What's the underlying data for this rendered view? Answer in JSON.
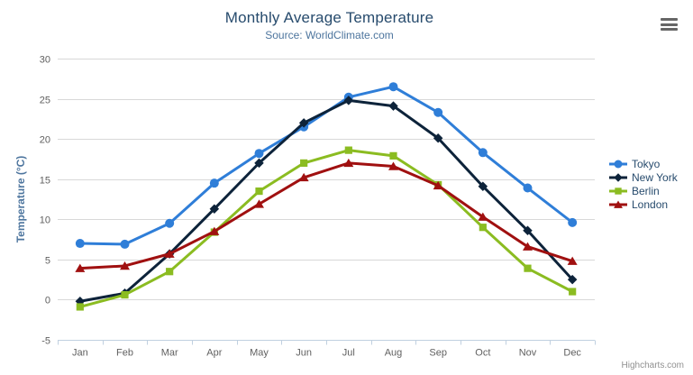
{
  "chart_data": {
    "type": "line",
    "title": "Monthly Average Temperature",
    "subtitle": "Source: WorldClimate.com",
    "categories": [
      "Jan",
      "Feb",
      "Mar",
      "Apr",
      "May",
      "Jun",
      "Jul",
      "Aug",
      "Sep",
      "Oct",
      "Nov",
      "Dec"
    ],
    "xlabel": "",
    "ylabel": "Temperature (°C)",
    "ylim": [
      -5,
      30
    ],
    "ytick_step": 5,
    "grid": true,
    "legend_position": "right",
    "series": [
      {
        "name": "Tokyo",
        "color": "#2f7ed8",
        "marker": "circle",
        "values": [
          7.0,
          6.9,
          9.5,
          14.5,
          18.2,
          21.5,
          25.2,
          26.5,
          23.3,
          18.3,
          13.9,
          9.6
        ]
      },
      {
        "name": "New York",
        "color": "#0d233a",
        "marker": "diamond",
        "values": [
          -0.2,
          0.8,
          5.7,
          11.3,
          17.0,
          22.0,
          24.8,
          24.1,
          20.1,
          14.1,
          8.6,
          2.5
        ]
      },
      {
        "name": "Berlin",
        "color": "#8bbc21",
        "marker": "square",
        "values": [
          -0.9,
          0.6,
          3.5,
          8.4,
          13.5,
          17.0,
          18.6,
          17.9,
          14.3,
          9.0,
          3.9,
          1.0
        ]
      },
      {
        "name": "London",
        "color": "#a01010",
        "marker": "triangle",
        "values": [
          3.9,
          4.2,
          5.7,
          8.5,
          11.9,
          15.2,
          17.0,
          16.6,
          14.2,
          10.3,
          6.6,
          4.8
        ]
      }
    ],
    "axis_colors": {
      "tick_label": "#606060",
      "axis_line": "#c0d0e0",
      "gridline": "#d8d8d8",
      "axis_title": "#4d759e"
    }
  },
  "icons": {
    "export_menu": "hamburger-icon"
  },
  "credits": "Highcharts.com"
}
